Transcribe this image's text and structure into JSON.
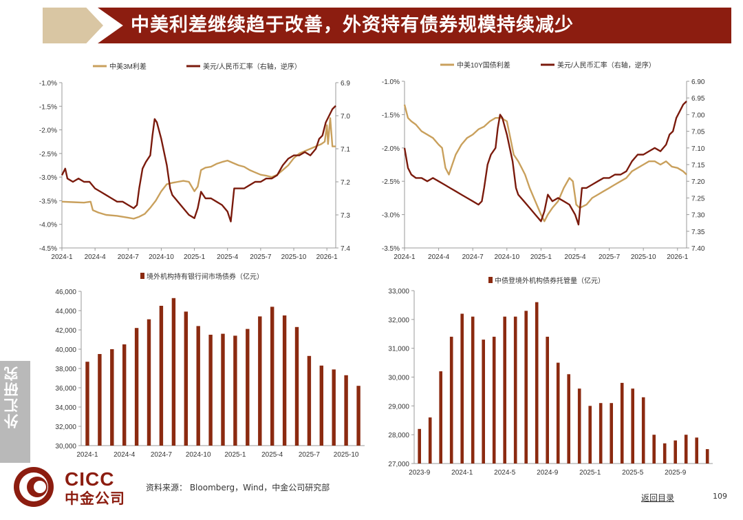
{
  "header": {
    "title": "中美利差继续趋于改善，外资持有债券规模持续减少",
    "side_tab": "外汇研究"
  },
  "colors": {
    "brand_red": "#8c1d10",
    "tan": "#c9a05c",
    "dark_red": "#7a1a0c",
    "bar": "#8b2a10"
  },
  "chart_data": [
    {
      "id": "chart1",
      "type": "line",
      "legend": [
        "中美3M利差",
        "美元/人民币汇率（右轴，逆序）"
      ],
      "x_ticks": [
        "2024-1",
        "2024-4",
        "2024-7",
        "2024-10",
        "2025-1",
        "2025-4",
        "2025-7",
        "2025-10",
        "2026-1"
      ],
      "y_left_ticks": [
        "-1.0%",
        "-1.5%",
        "-2.0%",
        "-2.5%",
        "-3.0%",
        "-3.5%",
        "-4.0%",
        "-4.5%"
      ],
      "y_left_range": [
        -4.5,
        -1.0
      ],
      "y_right_ticks": [
        "6.9",
        "7.0",
        "7.1",
        "7.2",
        "7.3",
        "7.4"
      ],
      "y_right_range": [
        6.9,
        7.4
      ],
      "y_right_inverted": true,
      "x_range_months": [
        0,
        24.8
      ],
      "series": [
        {
          "name": "中美3M利差",
          "axis": "left",
          "points": [
            [
              0,
              -3.52
            ],
            [
              1,
              -3.53
            ],
            [
              2,
              -3.54
            ],
            [
              2.6,
              -3.52
            ],
            [
              2.8,
              -3.7
            ],
            [
              3.3,
              -3.75
            ],
            [
              4,
              -3.8
            ],
            [
              5,
              -3.82
            ],
            [
              6,
              -3.86
            ],
            [
              6.5,
              -3.88
            ],
            [
              7,
              -3.84
            ],
            [
              7.5,
              -3.78
            ],
            [
              8,
              -3.65
            ],
            [
              8.5,
              -3.5
            ],
            [
              9,
              -3.3
            ],
            [
              9.5,
              -3.15
            ],
            [
              10,
              -3.12
            ],
            [
              10.5,
              -3.1
            ],
            [
              11,
              -3.08
            ],
            [
              11.5,
              -3.1
            ],
            [
              12,
              -3.3
            ],
            [
              12.3,
              -3.2
            ],
            [
              12.6,
              -2.85
            ],
            [
              13,
              -2.8
            ],
            [
              13.5,
              -2.78
            ],
            [
              14,
              -2.72
            ],
            [
              14.5,
              -2.68
            ],
            [
              15,
              -2.65
            ],
            [
              15.5,
              -2.7
            ],
            [
              16,
              -2.75
            ],
            [
              16.5,
              -2.78
            ],
            [
              17,
              -2.85
            ],
            [
              17.5,
              -2.9
            ],
            [
              18,
              -2.95
            ],
            [
              18.5,
              -2.97
            ],
            [
              19,
              -3.0
            ],
            [
              19.5,
              -2.95
            ],
            [
              20,
              -2.85
            ],
            [
              20.5,
              -2.75
            ],
            [
              21,
              -2.6
            ],
            [
              21.5,
              -2.5
            ],
            [
              22,
              -2.45
            ],
            [
              22.5,
              -2.4
            ],
            [
              23,
              -2.35
            ],
            [
              23.5,
              -2.3
            ],
            [
              23.8,
              -2.25
            ],
            [
              24,
              -1.9
            ],
            [
              24.1,
              -2.3
            ],
            [
              24.3,
              -1.75
            ],
            [
              24.5,
              -2.35
            ],
            [
              24.8,
              -2.35
            ]
          ]
        },
        {
          "name": "美元/人民币汇率（右轴，逆序）",
          "axis": "right",
          "points": [
            [
              0,
              7.18
            ],
            [
              0.3,
              7.16
            ],
            [
              0.5,
              7.19
            ],
            [
              1,
              7.2
            ],
            [
              1.5,
              7.19
            ],
            [
              2,
              7.2
            ],
            [
              2.5,
              7.2
            ],
            [
              3,
              7.22
            ],
            [
              3.5,
              7.23
            ],
            [
              4,
              7.24
            ],
            [
              4.5,
              7.25
            ],
            [
              5,
              7.26
            ],
            [
              5.5,
              7.26
            ],
            [
              6,
              7.27
            ],
            [
              6.5,
              7.28
            ],
            [
              6.8,
              7.27
            ],
            [
              7,
              7.22
            ],
            [
              7.3,
              7.16
            ],
            [
              7.6,
              7.14
            ],
            [
              8,
              7.12
            ],
            [
              8.2,
              7.06
            ],
            [
              8.4,
              7.01
            ],
            [
              8.6,
              7.02
            ],
            [
              9,
              7.07
            ],
            [
              9.5,
              7.15
            ],
            [
              9.8,
              7.22
            ],
            [
              10,
              7.24
            ],
            [
              10.5,
              7.26
            ],
            [
              11,
              7.28
            ],
            [
              11.5,
              7.3
            ],
            [
              12,
              7.31
            ],
            [
              12.3,
              7.28
            ],
            [
              12.6,
              7.23
            ],
            [
              13,
              7.25
            ],
            [
              13.5,
              7.25
            ],
            [
              14,
              7.26
            ],
            [
              14.5,
              7.27
            ],
            [
              15,
              7.29
            ],
            [
              15.3,
              7.32
            ],
            [
              15.6,
              7.22
            ],
            [
              16,
              7.22
            ],
            [
              16.5,
              7.22
            ],
            [
              17,
              7.21
            ],
            [
              17.5,
              7.2
            ],
            [
              18,
              7.2
            ],
            [
              18.5,
              7.19
            ],
            [
              19,
              7.19
            ],
            [
              19.5,
              7.18
            ],
            [
              20,
              7.15
            ],
            [
              20.5,
              7.13
            ],
            [
              21,
              7.12
            ],
            [
              21.5,
              7.12
            ],
            [
              22,
              7.11
            ],
            [
              22.5,
              7.12
            ],
            [
              23,
              7.1
            ],
            [
              23.3,
              7.07
            ],
            [
              23.6,
              7.06
            ],
            [
              23.9,
              7.02
            ],
            [
              24.2,
              7.0
            ],
            [
              24.5,
              6.98
            ],
            [
              24.8,
              6.97
            ]
          ]
        }
      ]
    },
    {
      "id": "chart2",
      "type": "line",
      "legend": [
        "中美10Y国债利差",
        "美元/人民币汇率（右轴，逆序）"
      ],
      "x_ticks": [
        "2024-1",
        "2024-4",
        "2024-7",
        "2024-10",
        "2025-1",
        "2025-4",
        "2025-7",
        "2025-10",
        "2026-1"
      ],
      "y_left_ticks": [
        "-1.0%",
        "-1.5%",
        "-2.0%",
        "-2.5%",
        "-3.0%",
        "-3.5%"
      ],
      "y_left_range": [
        -3.5,
        -1.0
      ],
      "y_right_ticks": [
        "6.90",
        "6.95",
        "7.00",
        "7.05",
        "7.10",
        "7.15",
        "7.20",
        "7.25",
        "7.30",
        "7.35",
        "7.40"
      ],
      "y_right_range": [
        6.9,
        7.4
      ],
      "y_right_inverted": true,
      "x_range_months": [
        0,
        24.8
      ],
      "series": [
        {
          "name": "中美10Y国债利差",
          "axis": "left",
          "points": [
            [
              0,
              -1.35
            ],
            [
              0.3,
              -1.55
            ],
            [
              0.6,
              -1.6
            ],
            [
              1,
              -1.65
            ],
            [
              1.5,
              -1.75
            ],
            [
              2,
              -1.8
            ],
            [
              2.5,
              -1.85
            ],
            [
              3,
              -1.95
            ],
            [
              3.3,
              -2.0
            ],
            [
              3.6,
              -2.3
            ],
            [
              3.9,
              -2.4
            ],
            [
              4.2,
              -2.25
            ],
            [
              4.5,
              -2.1
            ],
            [
              5,
              -1.95
            ],
            [
              5.5,
              -1.85
            ],
            [
              6,
              -1.8
            ],
            [
              6.5,
              -1.72
            ],
            [
              7,
              -1.68
            ],
            [
              7.5,
              -1.6
            ],
            [
              8,
              -1.55
            ],
            [
              8.5,
              -1.55
            ],
            [
              9,
              -1.6
            ],
            [
              9.3,
              -1.85
            ],
            [
              9.6,
              -2.1
            ],
            [
              10,
              -2.2
            ],
            [
              10.3,
              -2.3
            ],
            [
              10.6,
              -2.4
            ],
            [
              11,
              -2.6
            ],
            [
              11.5,
              -2.8
            ],
            [
              12,
              -3.0
            ],
            [
              12.3,
              -3.1
            ],
            [
              12.6,
              -3.0
            ],
            [
              13,
              -2.9
            ],
            [
              13.5,
              -2.8
            ],
            [
              14,
              -2.6
            ],
            [
              14.5,
              -2.45
            ],
            [
              14.8,
              -2.5
            ],
            [
              15.1,
              -2.85
            ],
            [
              15.4,
              -2.9
            ],
            [
              16,
              -2.85
            ],
            [
              16.5,
              -2.75
            ],
            [
              17,
              -2.7
            ],
            [
              17.5,
              -2.65
            ],
            [
              18,
              -2.6
            ],
            [
              18.5,
              -2.55
            ],
            [
              19,
              -2.5
            ],
            [
              19.5,
              -2.45
            ],
            [
              20,
              -2.35
            ],
            [
              20.5,
              -2.3
            ],
            [
              21,
              -2.25
            ],
            [
              21.5,
              -2.2
            ],
            [
              22,
              -2.2
            ],
            [
              22.5,
              -2.25
            ],
            [
              23,
              -2.2
            ],
            [
              23.5,
              -2.28
            ],
            [
              24,
              -2.3
            ],
            [
              24.5,
              -2.35
            ],
            [
              24.8,
              -2.4
            ]
          ]
        },
        {
          "name": "美元/人民币汇率（右轴，逆序）",
          "axis": "right",
          "points": [
            [
              0,
              7.1
            ],
            [
              0.3,
              7.16
            ],
            [
              0.6,
              7.18
            ],
            [
              1,
              7.19
            ],
            [
              1.5,
              7.19
            ],
            [
              2,
              7.2
            ],
            [
              2.5,
              7.19
            ],
            [
              3,
              7.2
            ],
            [
              3.5,
              7.21
            ],
            [
              4,
              7.22
            ],
            [
              4.5,
              7.23
            ],
            [
              5,
              7.24
            ],
            [
              5.5,
              7.25
            ],
            [
              6,
              7.26
            ],
            [
              6.5,
              7.27
            ],
            [
              6.8,
              7.26
            ],
            [
              7,
              7.22
            ],
            [
              7.3,
              7.15
            ],
            [
              7.6,
              7.12
            ],
            [
              8,
              7.1
            ],
            [
              8.2,
              7.04
            ],
            [
              8.4,
              7.0
            ],
            [
              8.6,
              7.01
            ],
            [
              9,
              7.06
            ],
            [
              9.5,
              7.14
            ],
            [
              9.8,
              7.22
            ],
            [
              10,
              7.24
            ],
            [
              10.5,
              7.26
            ],
            [
              11,
              7.28
            ],
            [
              11.5,
              7.3
            ],
            [
              12,
              7.32
            ],
            [
              12.3,
              7.29
            ],
            [
              12.6,
              7.24
            ],
            [
              13,
              7.26
            ],
            [
              13.5,
              7.25
            ],
            [
              14,
              7.26
            ],
            [
              14.5,
              7.27
            ],
            [
              15,
              7.3
            ],
            [
              15.3,
              7.33
            ],
            [
              15.6,
              7.22
            ],
            [
              16,
              7.22
            ],
            [
              16.5,
              7.21
            ],
            [
              17,
              7.2
            ],
            [
              17.5,
              7.19
            ],
            [
              18,
              7.19
            ],
            [
              18.5,
              7.18
            ],
            [
              19,
              7.18
            ],
            [
              19.5,
              7.17
            ],
            [
              20,
              7.14
            ],
            [
              20.5,
              7.12
            ],
            [
              21,
              7.12
            ],
            [
              21.5,
              7.11
            ],
            [
              22,
              7.1
            ],
            [
              22.5,
              7.11
            ],
            [
              23,
              7.09
            ],
            [
              23.3,
              7.06
            ],
            [
              23.6,
              7.05
            ],
            [
              23.9,
              7.01
            ],
            [
              24.2,
              6.99
            ],
            [
              24.5,
              6.97
            ],
            [
              24.8,
              6.96
            ]
          ]
        }
      ]
    },
    {
      "id": "chart3",
      "type": "bar",
      "legend": [
        "境外机构持有银行间市场债券（亿元）"
      ],
      "x_ticks": [
        "2024-1",
        "2024-4",
        "2024-7",
        "2024-10",
        "2025-1",
        "2025-4",
        "2025-7",
        "2025-10"
      ],
      "tick_every": 3,
      "y_ticks": [
        "46,000",
        "44,000",
        "42,000",
        "40,000",
        "38,000",
        "36,000",
        "34,000",
        "32,000",
        "30,000"
      ],
      "ylim": [
        30000,
        46000
      ],
      "values": [
        38700,
        39500,
        40000,
        40500,
        42200,
        43100,
        44500,
        45300,
        43900,
        42400,
        41500,
        41600,
        41400,
        42100,
        43400,
        44400,
        43500,
        42300,
        39300,
        38300,
        37900,
        37300,
        36200
      ]
    },
    {
      "id": "chart4",
      "type": "bar",
      "legend": [
        "中债登境外机构债券托管量（亿元）"
      ],
      "x_ticks": [
        "2023-9",
        "2024-1",
        "2024-5",
        "2024-9",
        "2025-1",
        "2025-5",
        "2025-9"
      ],
      "tick_every": 4,
      "y_ticks": [
        "33,000",
        "32,000",
        "31,000",
        "30,000",
        "29,000",
        "28,000",
        "27,000"
      ],
      "ylim": [
        27000,
        33000
      ],
      "values": [
        28200,
        28600,
        30200,
        31400,
        32200,
        32100,
        31300,
        31400,
        32100,
        32100,
        32300,
        32600,
        31400,
        30500,
        30100,
        29600,
        29000,
        29100,
        29100,
        29800,
        29600,
        29300,
        28000,
        27700,
        27800,
        28000,
        27900,
        27500
      ]
    }
  ],
  "footer": {
    "logo_text_en": "CICC",
    "logo_text_cn": "中金公司",
    "source": "资料来源：  Bloomberg，Wind，中金公司研究部",
    "back_link": "返回目录",
    "page_number": "109"
  }
}
